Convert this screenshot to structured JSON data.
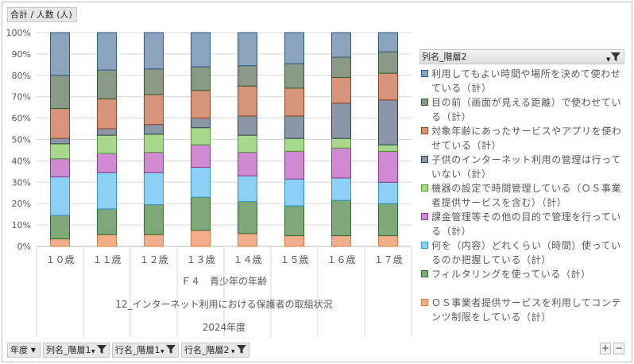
{
  "value_field": "合計 / 人数 (人)",
  "legend_field": "列名_階層2",
  "bottom_fields": [
    "年度",
    "列名_階層1",
    "行名_階層1",
    "行名_階層2"
  ],
  "zoom": {
    "plus": "+",
    "minus": "−"
  },
  "colors": {
    "c1": {
      "fill": "#8ba3bc",
      "stroke": "#2e5a88"
    },
    "c2": {
      "fill": "#8a9a86",
      "stroke": "#2e5a2e"
    },
    "c3": {
      "fill": "#d6957a",
      "stroke": "#9a4422"
    },
    "c4": {
      "fill": "#8b97a6",
      "stroke": "#2d4054"
    },
    "c5": {
      "fill": "#a8d88c",
      "stroke": "#4e9a30"
    },
    "c6": {
      "fill": "#cf8ad2",
      "stroke": "#8a3a8c"
    },
    "c7": {
      "fill": "#8cd0f5",
      "stroke": "#2f95d0"
    },
    "c8": {
      "fill": "#7fa878",
      "stroke": "#2e6a2a"
    },
    "c9": {
      "fill": "#f2ae8a",
      "stroke": "#e07a40"
    }
  },
  "chart_data": {
    "type": "bar",
    "stacked": "percent",
    "categories": [
      "１０歳",
      "１１歳",
      "１２歳",
      "１３歳",
      "１４歳",
      "１５歳",
      "１６歳",
      "１７歳"
    ],
    "xlabel_lines": [
      "Ｆ４　青少年の年齢",
      "12_インターネット利用における保護者の取組状況",
      "2024年度"
    ],
    "ylabel": "",
    "yticks": [
      "0%",
      "10%",
      "20%",
      "30%",
      "40%",
      "50%",
      "60%",
      "70%",
      "80%",
      "90%",
      "100%"
    ],
    "ylim": [
      0,
      100
    ],
    "grid": true,
    "legend_position": "right",
    "series": [
      {
        "name": "ＯＳ事業者提供サービスを利用してコンテンツ制限をしている（計）",
        "color": "c9",
        "values": [
          3.5,
          5.5,
          5.5,
          7.5,
          6,
          5,
          5,
          5
        ]
      },
      {
        "name": "フィルタリングを使っている（計）",
        "color": "c8",
        "values": [
          11,
          12,
          14,
          15.5,
          15,
          14,
          16.5,
          15
        ]
      },
      {
        "name": "何を（内容）どれくらい（時間）使っているのか把握している（計）",
        "color": "c7",
        "values": [
          18,
          17,
          15,
          14,
          12,
          12.5,
          10.5,
          10
        ]
      },
      {
        "name": "課金管理等その他の目的で管理を行っている（計）",
        "color": "c6",
        "values": [
          8.5,
          9,
          9.5,
          10.5,
          11,
          13,
          14,
          14.5
        ]
      },
      {
        "name": "機器の設定で時間管理している（ＯＳ事業者提供サービスを含む）（計）",
        "color": "c5",
        "values": [
          7,
          8.5,
          8.5,
          8,
          8,
          6,
          4.5,
          3
        ]
      },
      {
        "name": "子供のインターネット利用の管理は行っていない（計）",
        "color": "c4",
        "values": [
          2.5,
          3,
          4.5,
          4.5,
          9,
          10.5,
          16.5,
          21
        ]
      },
      {
        "name": "対象年齢にあったサービスやアプリを使わせている（計）",
        "color": "c3",
        "values": [
          14,
          14,
          14,
          13,
          14,
          13,
          12,
          12.5
        ]
      },
      {
        "name": "目の前（画面が見える距離）で使わせている（計）",
        "color": "c2",
        "values": [
          15.5,
          13.5,
          12,
          11,
          9.5,
          11.5,
          9.5,
          10
        ]
      },
      {
        "name": "利用してもよい時間や場所を決めて使わせている（計）",
        "color": "c1",
        "values": [
          20,
          17.5,
          17,
          16,
          15.5,
          14.5,
          11.5,
          9
        ]
      }
    ]
  },
  "legend_items": [
    {
      "text": "利用してもよい時間や場所を決めて使わせている（計）",
      "color": "c1"
    },
    {
      "text": "目の前（画面が見える距離）で使わせている（計）",
      "color": "c2"
    },
    {
      "text": "対象年齢にあったサービスやアプリを使わせている（計）",
      "color": "c3"
    },
    {
      "text": "子供のインターネット利用の管理は行っていない（計）",
      "color": "c4"
    },
    {
      "text": "機器の設定で時間管理している（ＯＳ事業者提供サービスを含む）（計）",
      "color": "c5"
    },
    {
      "text": "課金管理等その他の目的で管理を行っている（計）",
      "color": "c6"
    },
    {
      "text": "何を（内容）どれくらい（時間）使っているのか把握している（計）",
      "color": "c7"
    },
    {
      "text": "フィルタリングを使っている（計）",
      "color": "c8"
    },
    {
      "text": "ＯＳ事業者提供サービスを利用してコンテンツ制限をしている（計）",
      "color": "c9"
    }
  ]
}
